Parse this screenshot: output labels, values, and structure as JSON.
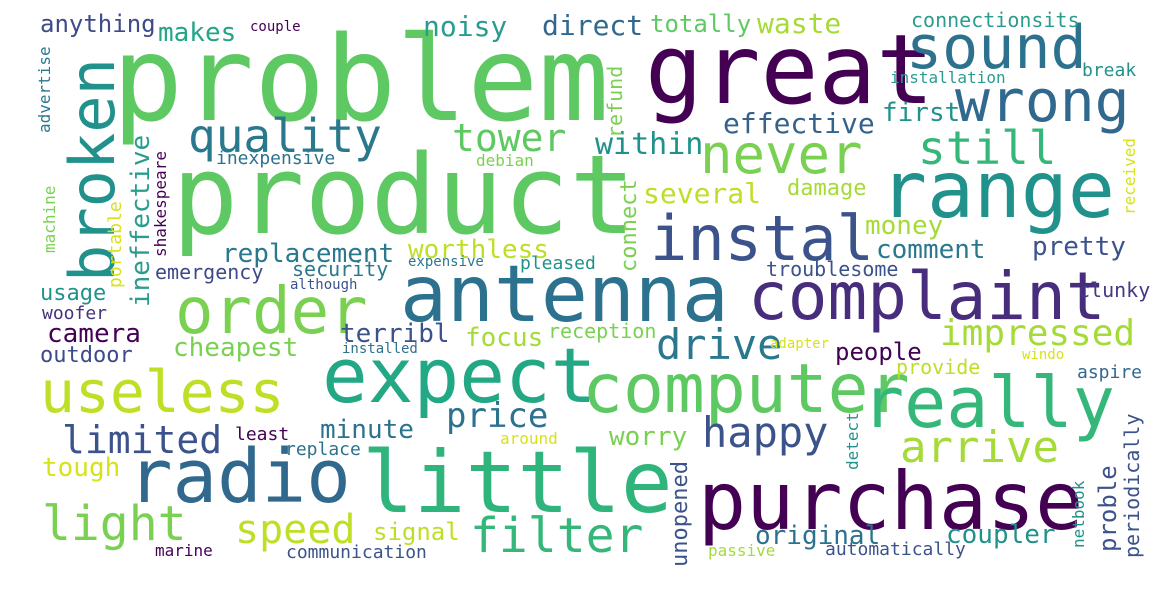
{
  "words": [
    {
      "text": "problem",
      "color": "#5ec962"
    },
    {
      "text": "great",
      "color": "#440154"
    },
    {
      "text": "sound",
      "color": "#2c728e"
    },
    {
      "text": "wrong",
      "color": "#31688e"
    },
    {
      "text": "product",
      "color": "#5ec962"
    },
    {
      "text": "range",
      "color": "#21918c"
    },
    {
      "text": "never",
      "color": "#7ad151"
    },
    {
      "text": "still",
      "color": "#35b779"
    },
    {
      "text": "quality",
      "color": "#2a788e"
    },
    {
      "text": "broken",
      "color": "#21918c"
    },
    {
      "text": "tower",
      "color": "#5ec962"
    },
    {
      "text": "instal",
      "color": "#3b528b"
    },
    {
      "text": "antenna",
      "color": "#2c728e"
    },
    {
      "text": "complaint",
      "color": "#472d7b"
    },
    {
      "text": "order",
      "color": "#7ad151"
    },
    {
      "text": "expect",
      "color": "#22a884"
    },
    {
      "text": "computer",
      "color": "#5ec962"
    },
    {
      "text": "useless",
      "color": "#bddf26"
    },
    {
      "text": "really",
      "color": "#35b779"
    },
    {
      "text": "impressed",
      "color": "#a5db36"
    },
    {
      "text": "radio",
      "color": "#31688e"
    },
    {
      "text": "little",
      "color": "#2fb47c"
    },
    {
      "text": "purchase",
      "color": "#440154"
    },
    {
      "text": "happy",
      "color": "#3b528b"
    },
    {
      "text": "arrive",
      "color": "#a5db36"
    },
    {
      "text": "light",
      "color": "#7ad151"
    },
    {
      "text": "speed",
      "color": "#bddf26"
    },
    {
      "text": "filter",
      "color": "#35b779"
    },
    {
      "text": "drive",
      "color": "#2a788e"
    },
    {
      "text": "price",
      "color": "#2c728e"
    },
    {
      "text": "limited",
      "color": "#3b528b"
    },
    {
      "text": "anything",
      "color": "#3e4a89"
    },
    {
      "text": "makes",
      "color": "#21a585"
    },
    {
      "text": "couple",
      "color": "#440154"
    },
    {
      "text": "noisy",
      "color": "#2a9d8f"
    },
    {
      "text": "direct",
      "color": "#31688e"
    },
    {
      "text": "totally",
      "color": "#5ec962"
    },
    {
      "text": "waste",
      "color": "#a5db36"
    },
    {
      "text": "connectionsits",
      "color": "#2a9d8f"
    },
    {
      "text": "installation",
      "color": "#2a9d8f"
    },
    {
      "text": "break",
      "color": "#21918c"
    },
    {
      "text": "effective",
      "color": "#33638d"
    },
    {
      "text": "first",
      "color": "#21918c"
    },
    {
      "text": "within",
      "color": "#21918c"
    },
    {
      "text": "refund",
      "color": "#7ad151"
    },
    {
      "text": "several",
      "color": "#bddf26"
    },
    {
      "text": "damage",
      "color": "#a5db36"
    },
    {
      "text": "money",
      "color": "#a5db36"
    },
    {
      "text": "comment",
      "color": "#2a788e"
    },
    {
      "text": "pretty",
      "color": "#3b528b"
    },
    {
      "text": "inexpensive",
      "color": "#2c728e"
    },
    {
      "text": "debian",
      "color": "#7ad151"
    },
    {
      "text": "received",
      "color": "#d8e219"
    },
    {
      "text": "replacement",
      "color": "#2a788e"
    },
    {
      "text": "worthless",
      "color": "#bddf26"
    },
    {
      "text": "emergency",
      "color": "#3e4a89"
    },
    {
      "text": "security",
      "color": "#2a788e"
    },
    {
      "text": "expensive",
      "color": "#2a788e"
    },
    {
      "text": "pleased",
      "color": "#21918c"
    },
    {
      "text": "troublesome",
      "color": "#3b528b"
    },
    {
      "text": "usage",
      "color": "#21918c"
    },
    {
      "text": "although",
      "color": "#3b528b"
    },
    {
      "text": "clunky",
      "color": "#443983"
    },
    {
      "text": "woofer",
      "color": "#46327e"
    },
    {
      "text": "camera",
      "color": "#440154"
    },
    {
      "text": "terribl",
      "color": "#3b528b"
    },
    {
      "text": "focus",
      "color": "#a5db36"
    },
    {
      "text": "reception",
      "color": "#7ad151"
    },
    {
      "text": "outdoor",
      "color": "#3e4a89"
    },
    {
      "text": "cheapest",
      "color": "#7ad151"
    },
    {
      "text": "installed",
      "color": "#2c728e"
    },
    {
      "text": "adapter",
      "color": "#d8e219"
    },
    {
      "text": "people",
      "color": "#440154"
    },
    {
      "text": "provide",
      "color": "#bddf26"
    },
    {
      "text": "windo",
      "color": "#d8e219"
    },
    {
      "text": "aspire",
      "color": "#31688e"
    },
    {
      "text": "minute",
      "color": "#2c728e"
    },
    {
      "text": "worry",
      "color": "#7ad151"
    },
    {
      "text": "least",
      "color": "#440154"
    },
    {
      "text": "replace",
      "color": "#2c728e"
    },
    {
      "text": "around",
      "color": "#d8e219"
    },
    {
      "text": "tough",
      "color": "#d8e219"
    },
    {
      "text": "signal",
      "color": "#bddf26"
    },
    {
      "text": "original",
      "color": "#2c728e"
    },
    {
      "text": "coupler",
      "color": "#21918c"
    },
    {
      "text": "marine",
      "color": "#440154"
    },
    {
      "text": "communication",
      "color": "#3b528b"
    },
    {
      "text": "passive",
      "color": "#a5db36"
    },
    {
      "text": "automatically",
      "color": "#3b528b"
    },
    {
      "text": "advertise",
      "color": "#2a788e"
    },
    {
      "text": "machine",
      "color": "#7ad151"
    },
    {
      "text": "portable",
      "color": "#d8e219"
    },
    {
      "text": "ineffective",
      "color": "#2a9d8f"
    },
    {
      "text": "shakespeare",
      "color": "#440154"
    },
    {
      "text": "connect",
      "color": "#7ad151"
    },
    {
      "text": "unopened",
      "color": "#3b528b"
    },
    {
      "text": "detect",
      "color": "#21918c"
    },
    {
      "text": "proble",
      "color": "#3b528b"
    },
    {
      "text": "periodically",
      "color": "#3b528b"
    },
    {
      "text": "netbook",
      "color": "#21918c"
    }
  ]
}
